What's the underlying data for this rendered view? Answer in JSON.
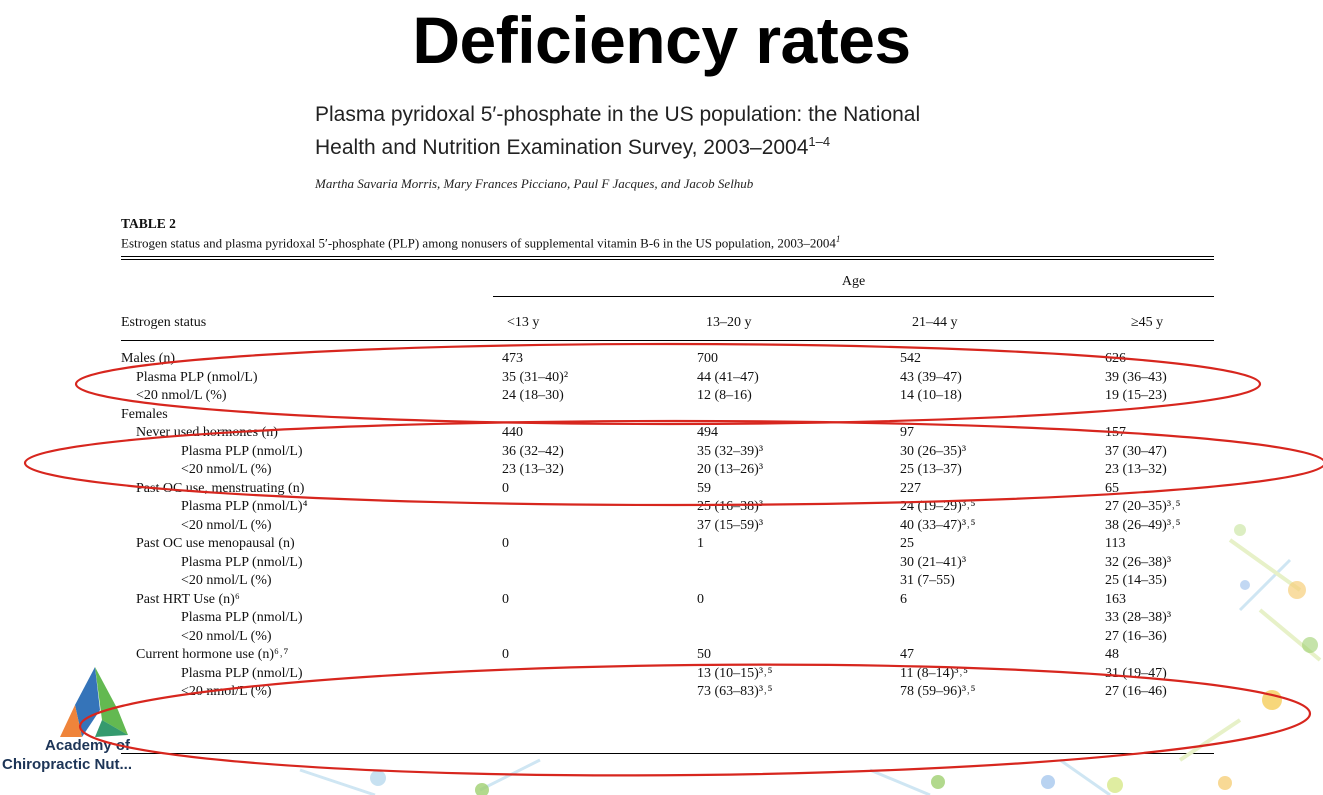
{
  "slide": {
    "title": "Deficiency rates"
  },
  "paper": {
    "title_line1": "Plasma pyridoxal 5′-phosphate in the US population: the National",
    "title_line2": "Health and Nutrition Examination Survey, 2003–2004",
    "title_sup": "1–4",
    "authors": "Martha Savaria Morris, Mary Frances Picciano, Paul F Jacques, and Jacob Selhub"
  },
  "table": {
    "label": "TABLE 2",
    "caption": "Estrogen status and plasma pyridoxal 5′-phosphate (PLP) among nonusers of supplemental vitamin B-6 in the US population, 2003–2004",
    "caption_sup": "1",
    "age_header": "Age",
    "first_col_header": "Estrogen status",
    "columns": [
      "<13 y",
      "13–20 y",
      "21–44 y",
      "≥45 y"
    ],
    "rows": [
      {
        "label": "Males (n)",
        "indent": 0,
        "cells": [
          "473",
          "700",
          "542",
          "626"
        ]
      },
      {
        "label": "Plasma PLP (nmol/L)",
        "indent": 1,
        "cells": [
          "35 (31–40)²",
          "44 (41–47)",
          "43 (39–47)",
          "39 (36–43)"
        ]
      },
      {
        "label": "<20 nmol/L (%)",
        "indent": 1,
        "cells": [
          "24 (18–30)",
          "12 (8–16)",
          "14 (10–18)",
          "19 (15–23)"
        ]
      },
      {
        "label": "Females",
        "indent": 0,
        "cells": [
          "",
          "",
          "",
          ""
        ]
      },
      {
        "label": "Never used hormones (n)",
        "indent": 1,
        "cells": [
          "440",
          "494",
          "97",
          "157"
        ]
      },
      {
        "label": "Plasma PLP (nmol/L)",
        "indent": 2,
        "cells": [
          "36 (32–42)",
          "35 (32–39)³",
          "30 (26–35)³",
          "37 (30–47)"
        ]
      },
      {
        "label": "<20 nmol/L (%)",
        "indent": 2,
        "cells": [
          "23 (13–32)",
          "20 (13–26)³",
          "25 (13–37)",
          "23 (13–32)"
        ]
      },
      {
        "label": "Past OC use, menstruating (n)",
        "indent": 1,
        "cells": [
          "0",
          "59",
          "227",
          "65"
        ]
      },
      {
        "label": "Plasma PLP (nmol/L)⁴",
        "indent": 2,
        "cells": [
          "",
          "25 (16–38)³",
          "24 (19–29)³˒⁵",
          "27 (20–35)³˒⁵"
        ]
      },
      {
        "label": "<20 nmol/L (%)",
        "indent": 2,
        "cells": [
          "",
          "37 (15–59)³",
          "40 (33–47)³˒⁵",
          "38 (26–49)³˒⁵"
        ]
      },
      {
        "label": "Past OC use menopausal (n)",
        "indent": 1,
        "cells": [
          "0",
          "1",
          "25",
          "113"
        ]
      },
      {
        "label": "Plasma PLP (nmol/L)",
        "indent": 2,
        "cells": [
          "",
          "",
          "30 (21–41)³",
          "32 (26–38)³"
        ]
      },
      {
        "label": "<20 nmol/L (%)",
        "indent": 2,
        "cells": [
          "",
          "",
          "31 (7–55)",
          "25 (14–35)"
        ]
      },
      {
        "label": "Past HRT Use (n)⁶",
        "indent": 1,
        "cells": [
          "0",
          "0",
          "6",
          "163"
        ]
      },
      {
        "label": "Plasma PLP (nmol/L)",
        "indent": 2,
        "cells": [
          "",
          "",
          "",
          "33 (28–38)³"
        ]
      },
      {
        "label": "<20 nmol/L (%)",
        "indent": 2,
        "cells": [
          "",
          "",
          "",
          "27 (16–36)"
        ]
      },
      {
        "label": "Current hormone use (n)⁶˒⁷",
        "indent": 1,
        "cells": [
          "0",
          "50",
          "47",
          "48"
        ]
      },
      {
        "label": "Plasma PLP (nmol/L)",
        "indent": 2,
        "cells": [
          "",
          "13 (10–15)³˒⁵",
          "11 (8–14)³˒⁵",
          "31 (19–47)"
        ]
      },
      {
        "label": "<20 nmol/L (%)",
        "indent": 2,
        "cells": [
          "",
          "73 (63–83)³˒⁵",
          "78 (59–96)³˒⁵",
          "27 (16–46)"
        ]
      }
    ]
  },
  "logo": {
    "line1": "Academy of",
    "line2": "Chiropractic Nut..."
  },
  "colors": {
    "highlight": "#d7261e",
    "logo_blue": "#2a6db5",
    "logo_green": "#5bb548",
    "logo_orange": "#ee7d30"
  }
}
